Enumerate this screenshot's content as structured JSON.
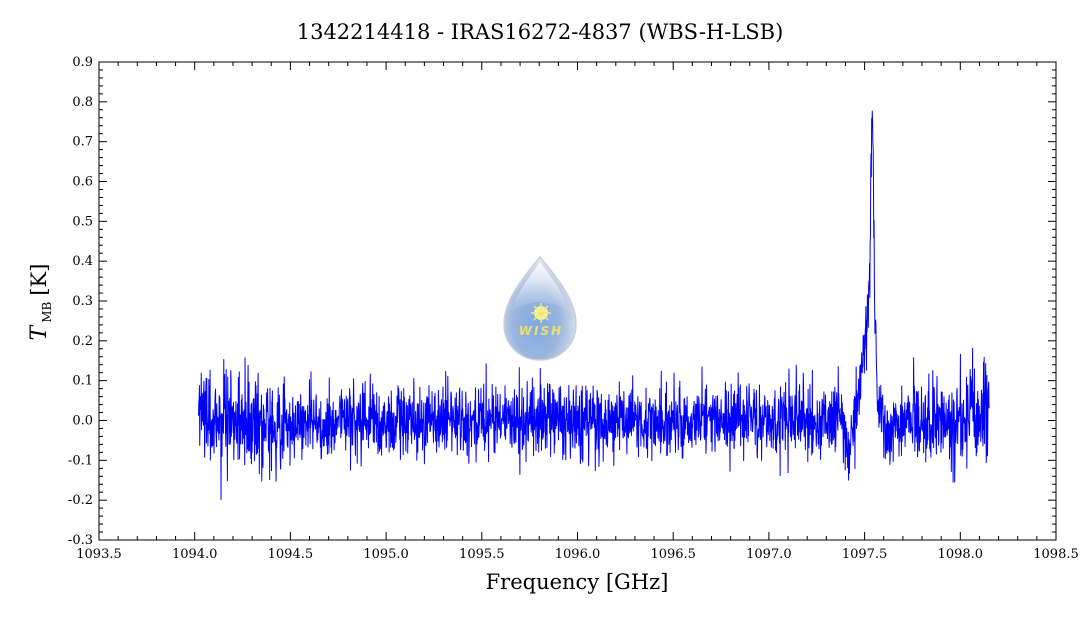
{
  "chart_data": {
    "type": "line",
    "title": "1342214418 - IRAS16272-4837 (WBS-H-LSB)",
    "xlabel": "Frequency [GHz]",
    "ylabel_main": "T",
    "ylabel_sub": "MB",
    "ylabel_unit": "[K]",
    "xlim": [
      1093.5,
      1098.5
    ],
    "ylim": [
      -0.3,
      0.9
    ],
    "xticks": [
      "1093.5",
      "1094.0",
      "1094.5",
      "1095.0",
      "1095.5",
      "1096.0",
      "1096.5",
      "1097.0",
      "1097.5",
      "1098.0",
      "1098.5"
    ],
    "yticks": [
      "-0.3",
      "-0.2",
      "-0.1",
      "0.0",
      "0.1",
      "0.2",
      "0.3",
      "0.4",
      "0.5",
      "0.6",
      "0.7",
      "0.8",
      "0.9"
    ],
    "grid": false,
    "series": [
      {
        "color": "#0000ff",
        "x_range": [
          1094.02,
          1098.15
        ],
        "noise_rms": 0.045,
        "features": [
          {
            "type": "emission",
            "center": 1097.54,
            "peak": 0.8,
            "note": "strong narrow line"
          },
          {
            "type": "emission",
            "center": 1097.5,
            "peak": 0.25,
            "note": "broad wing"
          },
          {
            "type": "absorption",
            "center": 1097.41,
            "depth": -0.12
          },
          {
            "type": "absorption",
            "center": 1097.62,
            "depth": -0.05
          }
        ],
        "sample_points": [
          [
            1094.02,
            0.14
          ],
          [
            1094.05,
            0.22
          ],
          [
            1094.2,
            -0.05
          ],
          [
            1094.3,
            -0.2
          ],
          [
            1094.5,
            0.05
          ],
          [
            1095.0,
            -0.02
          ],
          [
            1095.5,
            0.02
          ],
          [
            1096.0,
            -0.01
          ],
          [
            1096.5,
            0.0
          ],
          [
            1097.0,
            0.0
          ],
          [
            1097.35,
            0.1
          ],
          [
            1097.41,
            -0.12
          ],
          [
            1097.5,
            0.25
          ],
          [
            1097.54,
            0.8
          ],
          [
            1097.58,
            0.2
          ],
          [
            1097.7,
            0.0
          ],
          [
            1098.05,
            0.22
          ],
          [
            1098.15,
            0.0
          ]
        ]
      }
    ]
  },
  "logo": {
    "text": "WISH",
    "icon": "wish-water-drop-logo"
  },
  "colors": {
    "series": "#0000ff",
    "axes": "#000000",
    "background": "#ffffff"
  }
}
